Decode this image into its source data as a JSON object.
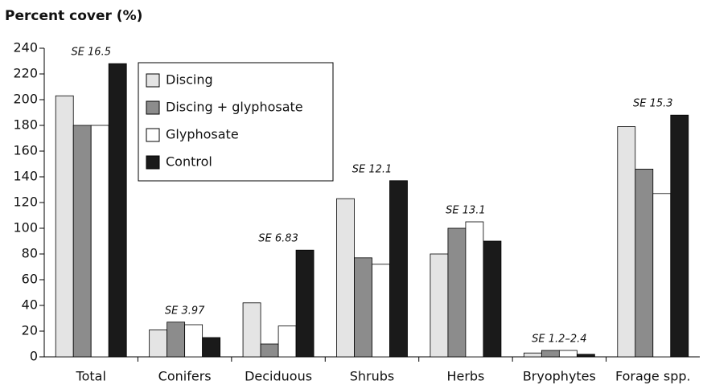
{
  "chart_data": {
    "type": "bar",
    "title": "Percent cover (%)",
    "categories": [
      "Total",
      "Conifers",
      "Deciduous",
      "Shrubs",
      "Herbs",
      "Bryophytes",
      "Forage spp."
    ],
    "series": [
      {
        "name": "Discing",
        "color": "#e4e4e4",
        "values": [
          203,
          21,
          42,
          123,
          80,
          3,
          179
        ]
      },
      {
        "name": "Discing + glyphosate",
        "color": "#8c8c8c",
        "values": [
          180,
          27,
          10,
          77,
          100,
          5,
          146
        ]
      },
      {
        "name": "Glyphosate",
        "color": "#ffffff",
        "values": [
          180,
          25,
          24,
          72,
          105,
          5,
          127
        ]
      },
      {
        "name": "Control",
        "color": "#1a1a1a",
        "values": [
          228,
          15,
          83,
          137,
          90,
          2,
          188
        ]
      }
    ],
    "se_labels": [
      "SE 16.5",
      "SE 3.97",
      "SE 6.83",
      "SE 12.1",
      "SE 13.1",
      "SE 1.2–2.4",
      "SE 15.3"
    ],
    "ylim": [
      0,
      240
    ],
    "yticks": [
      0,
      20,
      40,
      60,
      80,
      100,
      120,
      140,
      160,
      180,
      200,
      220,
      240
    ],
    "legend": "upper-left",
    "grid": false
  }
}
